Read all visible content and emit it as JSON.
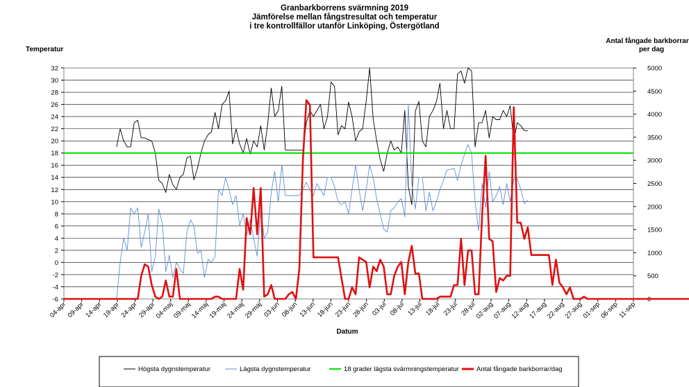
{
  "chart_data": {
    "type": "line",
    "title": [
      "Granbarkborrens svärmning 2019",
      "Jämförelse mellan fångstresultat och temperatur",
      "i tre kontrollfällor utanför Linköping, Östergötland"
    ],
    "ylabel_left": "Temperatur",
    "ylabel_right": [
      "Antal fångade barkborrar",
      "per dag"
    ],
    "xlabel": "Datum",
    "ylim_left": [
      -6,
      32
    ],
    "yticks_left": [
      -6,
      -4,
      -2,
      0,
      2,
      4,
      6,
      8,
      10,
      12,
      14,
      16,
      18,
      20,
      22,
      24,
      26,
      28,
      30,
      32
    ],
    "ylim_right": [
      0,
      5000
    ],
    "yticks_right": [
      0,
      500,
      1000,
      1500,
      2000,
      2500,
      3000,
      3500,
      4000,
      4500,
      5000
    ],
    "x_tick_labels": [
      "04-apr",
      "09-apr",
      "14-apr",
      "19-apr",
      "24-apr",
      "29-apr",
      "04-maj",
      "09-maj",
      "14-maj",
      "19-maj",
      "24-maj",
      "29-maj",
      "03-jun",
      "08-jun",
      "13-jun",
      "18-jun",
      "23-jun",
      "28-jun",
      "03-jul",
      "08-jul",
      "13-jul",
      "18-jul",
      "23-jul",
      "28-jul",
      "02-aug",
      "07-aug",
      "12-aug",
      "17-aug",
      "22-aug",
      "27-aug",
      "01-sep",
      "06-sep",
      "11-sep"
    ],
    "grid": true,
    "legend_position": "bottom",
    "series": [
      {
        "name": "Högsta dygnstemperatur",
        "axis": "left",
        "color": "#000000",
        "start_day": 15,
        "values": [
          19.0,
          22.0,
          20.0,
          19.0,
          19.0,
          23.0,
          23.4,
          20.5,
          20.5,
          20.2,
          20.0,
          18.0,
          13.5,
          13.0,
          11.5,
          14.5,
          12.8,
          12.0,
          14.0,
          14.5,
          17.2,
          17.5,
          13.6,
          15.5,
          18.0,
          20.0,
          21.0,
          21.5,
          24.7,
          22.0,
          26.0,
          26.6,
          28.2,
          19.5,
          22.0,
          19.5,
          18.0,
          20.4,
          17.8,
          20.0,
          19.0,
          22.5,
          18.5,
          22.8,
          28.7,
          24.0,
          25.0,
          29.0,
          18.5,
          18.5,
          18.5,
          18.5,
          18.5,
          18.5,
          23.0,
          25.0,
          24.0,
          25.0,
          26.0,
          22.0,
          24.0,
          29.7,
          29.0,
          21.0,
          22.5,
          22.0,
          26.4,
          24.0,
          20.0,
          21.5,
          22.0,
          26.5,
          32.0,
          23.6,
          20.0,
          16.9,
          15.0,
          18.0,
          20.0,
          18.5,
          19.0,
          18.0,
          25.0,
          12.5,
          9.5,
          24.9,
          26.5,
          20.0,
          19.0,
          24.0,
          25.0,
          26.5,
          29.5,
          22.0,
          25.0,
          22.0,
          22.0,
          31.0,
          31.5,
          29.5,
          32.0,
          31.5,
          19.0,
          23.0,
          23.0,
          25.0,
          20.5,
          24.0,
          23.5,
          23.5,
          25.0,
          24.0,
          25.8,
          20.0,
          23.0,
          22.5,
          21.7,
          21.7
        ]
      },
      {
        "name": "Lägsta dygnstemperatur",
        "axis": "left",
        "color": "#5b8fd6",
        "start_day": 15,
        "values": [
          -6.0,
          0.0,
          4.0,
          2.0,
          9.0,
          8.0,
          9.0,
          2.5,
          5.0,
          8.0,
          -1.5,
          1.0,
          8.8,
          6.5,
          -1.5,
          1.2,
          -2.5,
          0.0,
          -1.0,
          -1.8,
          5.0,
          7.0,
          6.0,
          1.5,
          2.0,
          -2.5,
          0.5,
          0.0,
          1.0,
          12.0,
          11.0,
          14.0,
          12.0,
          9.5,
          11.0,
          6.0,
          8.0,
          4.5,
          7.0,
          4.0,
          1.0,
          8.8,
          4.0,
          5.0,
          11.5,
          15.0,
          10.0,
          16.0,
          11.0,
          11.0,
          11.0,
          11.0,
          11.0,
          12.0,
          13.2,
          12.0,
          11.0,
          13.0,
          12.0,
          11.0,
          14.0,
          14.0,
          12.5,
          10.0,
          9.5,
          10.0,
          8.0,
          12.0,
          16.0,
          12.0,
          8.5,
          12.0,
          16.0,
          14.0,
          10.5,
          8.0,
          5.5,
          5.0,
          8.5,
          9.0,
          10.0,
          10.5,
          7.5,
          26.0,
          13.0,
          8.8,
          14.0,
          14.0,
          8.5,
          11.5,
          8.5,
          10.0,
          12.0,
          13.5,
          15.2,
          15.3,
          15.5,
          13.5,
          16.0,
          17.8,
          19.4,
          18.0,
          10.0,
          5.2,
          13.0,
          9.0,
          15.0,
          10.0,
          11.0,
          12.5,
          9.5,
          13.0,
          10.0,
          13.7,
          13.8,
          12.0,
          9.7,
          10.3
        ]
      },
      {
        "name": "18 grader lägsta svärmningstemperatur",
        "axis": "left",
        "color": "#00e000",
        "constant": 18
      },
      {
        "name": "Antal fångade barkborrar/dag",
        "axis": "right",
        "color": "#e01010",
        "start_day": 0,
        "values": [
          0,
          0,
          0,
          0,
          0,
          0,
          0,
          0,
          0,
          0,
          0,
          0,
          0,
          0,
          0,
          0,
          0,
          0,
          0,
          0,
          0,
          0,
          500,
          750,
          700,
          300,
          50,
          0,
          50,
          400,
          50,
          50,
          650,
          0,
          0,
          0,
          0,
          0,
          0,
          0,
          0,
          0,
          0,
          50,
          50,
          0,
          0,
          0,
          0,
          0,
          650,
          200,
          1750,
          1400,
          2400,
          1400,
          2400,
          50,
          100,
          300,
          0,
          0,
          0,
          0,
          100,
          150,
          0,
          650,
          3000,
          4300,
          4200,
          900,
          900,
          900,
          900,
          900,
          900,
          900,
          900,
          450,
          0,
          0,
          250,
          100,
          900,
          850,
          800,
          250,
          700,
          600,
          850,
          700,
          100,
          100,
          500,
          700,
          800,
          100,
          800,
          1150,
          550,
          550,
          0,
          0,
          0,
          0,
          0,
          50,
          50,
          50,
          50,
          300,
          300,
          1300,
          300,
          1050,
          1050,
          100,
          100,
          1800,
          3100,
          1300,
          1250,
          150,
          450,
          400,
          500,
          500,
          4150,
          1650,
          1650,
          1300,
          1550,
          950,
          950,
          950,
          950,
          950,
          950,
          300,
          850,
          350,
          250,
          100,
          250,
          0,
          0,
          0,
          50,
          0,
          0,
          0,
          0,
          0,
          0,
          0,
          0,
          0,
          0,
          0,
          0,
          0,
          0,
          0,
          0,
          0,
          0,
          0,
          0,
          0,
          0,
          0,
          0,
          0,
          0,
          0,
          0,
          0,
          0,
          0,
          0
        ]
      }
    ]
  }
}
